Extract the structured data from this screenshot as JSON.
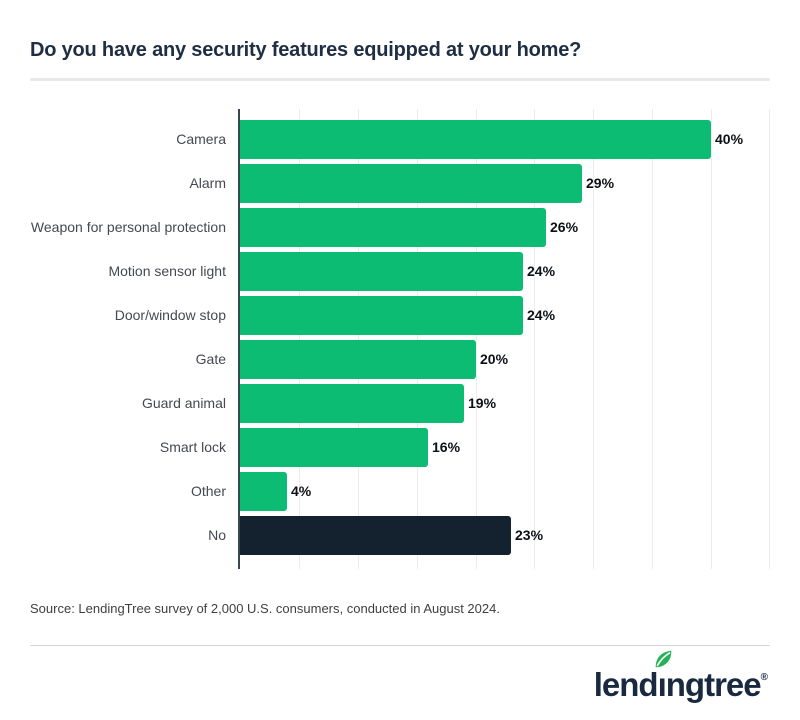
{
  "page": {
    "title": "Do you have any security features equipped at your home?",
    "source": "Source: LendingTree survey of 2,000 U.S. consumers, conducted in August 2024."
  },
  "colors": {
    "bar_green": "#0dbc73",
    "bar_navy": "#14222f",
    "axis": "#37474f",
    "gridline": "#ececec",
    "title_text": "#1f2e43",
    "leaf_green": "#25b157",
    "logo_navy": "#192940"
  },
  "chart_data": {
    "type": "bar",
    "orientation": "horizontal",
    "title": "Do you have any security features equipped at your home?",
    "categories": [
      "Camera",
      "Alarm",
      "Weapon for personal protection",
      "Motion sensor light",
      "Door/window stop",
      "Gate",
      "Guard animal",
      "Smart lock",
      "Other",
      "No"
    ],
    "values": [
      40,
      29,
      26,
      24,
      24,
      20,
      19,
      16,
      4,
      23
    ],
    "value_labels": [
      "40%",
      "29%",
      "26%",
      "24%",
      "24%",
      "20%",
      "19%",
      "16%",
      "4%",
      "23%"
    ],
    "bar_colors": [
      "#0dbc73",
      "#0dbc73",
      "#0dbc73",
      "#0dbc73",
      "#0dbc73",
      "#0dbc73",
      "#0dbc73",
      "#0dbc73",
      "#0dbc73",
      "#14222f"
    ],
    "value_suffix": "%",
    "xlabel": "",
    "ylabel": "",
    "xlim": [
      0,
      45
    ],
    "gridline_step": 5,
    "grid": "vertical-only",
    "legend": "none"
  },
  "footer": {
    "logo": {
      "name": "lendingtree",
      "pre": "lend",
      "stem": "ı",
      "post": "ngtree",
      "reg": "®"
    }
  }
}
